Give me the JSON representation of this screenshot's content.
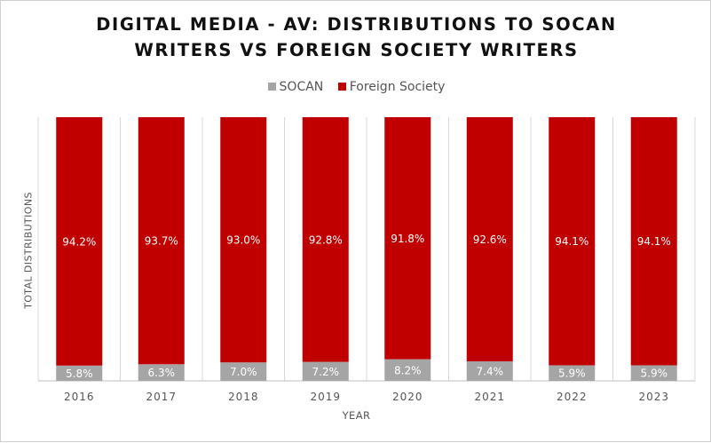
{
  "chart_data": {
    "type": "bar",
    "stacked": true,
    "percent_stacked": true,
    "title_lines": [
      "DIGITAL MEDIA - AV: DISTRIBUTIONS TO SOCAN",
      "WRITERS VS FOREIGN SOCIETY WRITERS"
    ],
    "xlabel": "YEAR",
    "ylabel": "TOTAL DISTRIBUTIONS",
    "legend_position": "top",
    "grid": "vertical",
    "categories": [
      "2016",
      "2017",
      "2018",
      "2019",
      "2020",
      "2021",
      "2022",
      "2023"
    ],
    "ylim": [
      0,
      100
    ],
    "series": [
      {
        "name": "SOCAN",
        "color": "#a5a5a5",
        "label_color": "#ffffff",
        "values": [
          5.8,
          6.3,
          7.0,
          7.2,
          8.2,
          7.4,
          5.9,
          5.9
        ],
        "labels": [
          "5.8%",
          "6.3%",
          "7.0%",
          "7.2%",
          "8.2%",
          "7.4%",
          "5.9%",
          "5.9%"
        ]
      },
      {
        "name": "Foreign Society",
        "color": "#c00000",
        "label_color": "#ffffff",
        "values": [
          94.2,
          93.7,
          93.0,
          92.8,
          91.8,
          92.6,
          94.1,
          94.1
        ],
        "labels": [
          "94.2%",
          "93.7%",
          "93.0%",
          "92.8%",
          "91.8%",
          "92.6%",
          "94.1%",
          "94.1%"
        ]
      }
    ]
  }
}
